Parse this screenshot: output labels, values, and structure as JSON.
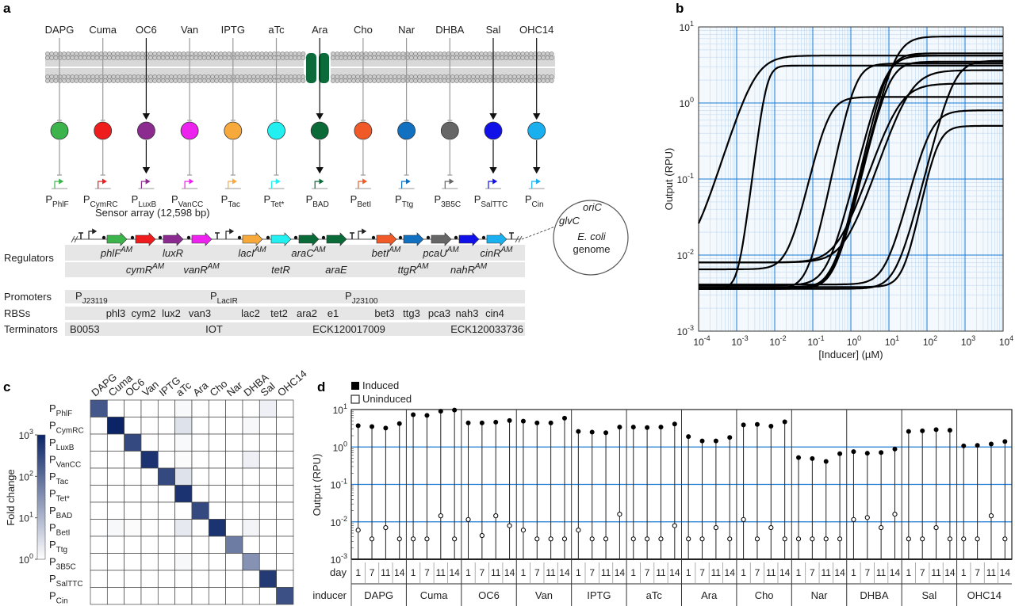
{
  "panel_labels": [
    "a",
    "b",
    "c",
    "d"
  ],
  "panel_a": {
    "inducers": [
      "DAPG",
      "Cuma",
      "OC6",
      "Van",
      "IPTG",
      "aTc",
      "Ara",
      "Cho",
      "Nar",
      "DHBA",
      "Sal",
      "OHC14"
    ],
    "mode": [
      "repress",
      "repress",
      "activate",
      "repress",
      "repress",
      "repress",
      "activate",
      "repress",
      "repress",
      "repress",
      "activate",
      "activate"
    ],
    "regulator_colors": [
      "#3cb44b",
      "#ee1c1c",
      "#8b2a8f",
      "#ee22ee",
      "#f7a93b",
      "#22f0f0",
      "#0a6a38",
      "#f05a28",
      "#1170c0",
      "#666666",
      "#1010e8",
      "#1ab0f0"
    ],
    "channel_color": "#0b6b3a",
    "promoters": [
      "PhlF",
      "CymRC",
      "LuxB",
      "VanCC",
      "Tac",
      "Tet*",
      "BAD",
      "BetI",
      "Ttg",
      "3B5C",
      "SalTTC",
      "Cin"
    ],
    "promoter_prefix": "P",
    "sensor_array_title": "Sensor array (12,598 bp)",
    "genes": [
      {
        "name": "phlF",
        "sup": "AM",
        "color": "#3cb44b",
        "row": 0
      },
      {
        "name": "cymR",
        "sup": "AM",
        "color": "#ee1c1c",
        "row": 1
      },
      {
        "name": "luxR",
        "sup": "",
        "color": "#8b2a8f",
        "row": 0
      },
      {
        "name": "vanR",
        "sup": "AM",
        "color": "#ee22ee",
        "row": 1
      },
      {
        "name": "lacI",
        "sup": "AM",
        "color": "#f7a93b",
        "row": 0
      },
      {
        "name": "tetR",
        "sup": "",
        "color": "#22f0f0",
        "row": 1
      },
      {
        "name": "araC",
        "sup": "AM",
        "color": "#0a6a38",
        "row": 0
      },
      {
        "name": "araE",
        "sup": "",
        "color": "#0a6a38",
        "row": 1
      },
      {
        "name": "betI",
        "sup": "AM",
        "color": "#f05a28",
        "row": 0
      },
      {
        "name": "ttgR",
        "sup": "AM",
        "color": "#1170c0",
        "row": 1
      },
      {
        "name": "pcaU",
        "sup": "AM",
        "color": "#666666",
        "row": 0
      },
      {
        "name": "nahR",
        "sup": "AM",
        "color": "#1010e8",
        "row": 1
      },
      {
        "name": "cinR",
        "sup": "AM",
        "color": "#1ab0f0",
        "row": 0
      }
    ],
    "row_labels": {
      "regulators": "Regulators",
      "promoters": "Promoters",
      "rbss": "RBSs",
      "terminators": "Terminators"
    },
    "array_promoters": [
      {
        "p": "P",
        "sub": "J23119"
      },
      {
        "p": "P",
        "sub": "LacIR"
      },
      {
        "p": "P",
        "sub": "J23100"
      }
    ],
    "rbss": [
      "phl3",
      "cym2",
      "lux2",
      "van3",
      "lac2",
      "tet2",
      "ara2",
      "e1",
      "bet3",
      "ttg3",
      "pca3",
      "nah3",
      "cin4"
    ],
    "terminators": [
      "B0053",
      "IOT",
      "ECK120017009",
      "ECK120033736"
    ],
    "genome": {
      "oric": "oriC",
      "glvc": "glvC",
      "species": "E. coli",
      "word": "genome"
    }
  },
  "chart_data": [
    {
      "type": "line",
      "panel": "b",
      "xlabel": "[Inducer] (µM)",
      "ylabel": "Output (RPU)",
      "xscale": "log",
      "yscale": "log",
      "xlim": [
        0.0001,
        10000
      ],
      "ylim": [
        0.001,
        10
      ],
      "x_tick_exponents": [
        "-4",
        "-3",
        "-2",
        "-1",
        "0",
        "1",
        "2",
        "3",
        "4"
      ],
      "y_tick_exponents": [
        "-3",
        "-2",
        "-1",
        "0",
        "1"
      ],
      "grid": true,
      "line_color": "#000000",
      "grid_color": "#1a7ad4",
      "curves_hill": [
        {
          "ymin": 0.008,
          "ymax": 4.2,
          "K": 0.003,
          "n": 1.6
        },
        {
          "ymin": 0.0036,
          "ymax": 3.1,
          "K": 0.006,
          "n": 4
        },
        {
          "ymin": 0.0065,
          "ymax": 1.2,
          "K": 0.25,
          "n": 2.2
        },
        {
          "ymin": 0.0036,
          "ymax": 3.3,
          "K": 1.3,
          "n": 2.4
        },
        {
          "ymin": 0.0036,
          "ymax": 7.5,
          "K": 15,
          "n": 2
        },
        {
          "ymin": 0.0038,
          "ymax": 4.5,
          "K": 9,
          "n": 2.2
        },
        {
          "ymin": 0.004,
          "ymax": 4.2,
          "K": 8,
          "n": 2
        },
        {
          "ymin": 0.0036,
          "ymax": 3.5,
          "K": 10,
          "n": 2.1
        },
        {
          "ymin": 0.008,
          "ymax": 2.7,
          "K": 35,
          "n": 1.5
        },
        {
          "ymin": 0.008,
          "ymax": 1.8,
          "K": 18,
          "n": 1.5
        },
        {
          "ymin": 0.0041,
          "ymax": 0.8,
          "K": 120,
          "n": 2
        },
        {
          "ymin": 0.0038,
          "ymax": 0.5,
          "K": 180,
          "n": 2.5
        },
        {
          "ymin": 0.0036,
          "ymax": 3.6,
          "K": 500,
          "n": 2
        }
      ]
    },
    {
      "type": "heatmap",
      "panel": "c",
      "columns": [
        "DAPG",
        "Cuma",
        "OC6",
        "Van",
        "IPTG",
        "aTc",
        "Ara",
        "Cho",
        "Nar",
        "DHBA",
        "Sal",
        "OHC14"
      ],
      "rows": [
        "PhlF",
        "CymRC",
        "LuxB",
        "VanCC",
        "Tac",
        "Tet*",
        "BAD",
        "BetI",
        "Ttg",
        "3B5C",
        "SalTTC",
        "Cin"
      ],
      "row_prefix": "P",
      "colorbar_label": "Fold change",
      "colorbar_tick_exponents": [
        "0",
        "1",
        "2",
        "3"
      ],
      "color_range": [
        1,
        1000
      ],
      "color_low": "#ffffff",
      "color_high": "#0b2466",
      "log10_fold_change": [
        [
          2.3,
          0,
          0,
          0,
          0,
          0.08,
          0,
          0,
          0,
          0,
          0.2,
          0
        ],
        [
          0,
          3.0,
          0,
          0,
          0,
          0.4,
          0,
          0,
          0,
          0.1,
          0,
          0
        ],
        [
          0,
          0,
          2.5,
          0,
          0,
          0.08,
          0,
          0,
          0,
          0,
          0,
          0
        ],
        [
          0,
          0,
          0,
          2.8,
          0,
          0.05,
          0,
          0,
          0,
          0.2,
          0,
          0
        ],
        [
          0,
          0,
          0,
          0,
          2.5,
          0.4,
          0,
          0,
          0,
          0,
          0,
          0
        ],
        [
          0,
          0,
          0,
          0,
          0,
          2.8,
          0,
          0,
          0,
          0,
          0,
          0
        ],
        [
          0,
          0,
          0,
          0,
          0,
          0,
          2.5,
          0,
          0,
          0,
          0,
          0
        ],
        [
          0,
          0.1,
          0.05,
          0,
          0,
          0.3,
          0,
          2.8,
          0,
          0.15,
          0,
          0
        ],
        [
          0,
          0,
          0,
          0,
          0,
          0,
          0,
          0,
          1.8,
          0,
          0,
          0
        ],
        [
          0,
          0,
          0,
          0,
          0,
          0.1,
          0,
          0,
          0,
          1.5,
          0,
          0
        ],
        [
          0,
          0,
          0,
          0,
          0,
          0,
          0,
          0,
          0,
          0,
          2.7,
          0
        ],
        [
          0,
          0,
          0,
          0,
          0,
          0,
          0,
          0,
          0,
          0,
          0,
          2.4
        ]
      ]
    },
    {
      "type": "scatter",
      "panel": "d",
      "ylabel": "Output (RPU)",
      "yscale": "log",
      "ylim": [
        0.001,
        10
      ],
      "y_tick_exponents": [
        "-3",
        "-2",
        "-1",
        "0",
        "1"
      ],
      "legend": {
        "induced": "Induced",
        "uninduced": "Uninduced",
        "placement": "top-left"
      },
      "day_label": "day",
      "inducer_label": "inducer",
      "days": [
        "1",
        "7",
        "11",
        "14"
      ],
      "groups": [
        "DAPG",
        "Cuma",
        "OC6",
        "Van",
        "IPTG",
        "aTc",
        "Ara",
        "Cho",
        "Nar",
        "DHBA",
        "Sal",
        "OHC14"
      ],
      "induced": [
        [
          3.7,
          3.5,
          3.2,
          4.2
        ],
        [
          7.3,
          7.0,
          9.0,
          9.7
        ],
        [
          4.4,
          4.4,
          4.6,
          5.1
        ],
        [
          4.9,
          4.4,
          4.4,
          5.9
        ],
        [
          2.6,
          2.5,
          2.4,
          3.4
        ],
        [
          3.4,
          3.3,
          3.4,
          4.1
        ],
        [
          1.9,
          1.45,
          1.45,
          1.8
        ],
        [
          3.9,
          4.0,
          3.6,
          4.7
        ],
        [
          0.52,
          0.49,
          0.41,
          0.66
        ],
        [
          0.75,
          0.68,
          0.71,
          0.88
        ],
        [
          2.6,
          2.7,
          2.9,
          2.8
        ],
        [
          1.07,
          1.1,
          1.2,
          1.4
        ]
      ],
      "uninduced": [
        [
          0.006,
          0.0035,
          0.007,
          0.0035
        ],
        [
          0.0035,
          0.0035,
          0.0145,
          0.0035
        ],
        [
          0.0115,
          0.0043,
          0.0145,
          0.0079
        ],
        [
          0.006,
          0.0035,
          0.0035,
          0.0035
        ],
        [
          0.006,
          0.0035,
          0.0035,
          0.016
        ],
        [
          0.0035,
          0.0035,
          0.0035,
          0.0079
        ],
        [
          0.0035,
          0.0035,
          0.007,
          0.0035
        ],
        [
          0.0115,
          0.0035,
          0.007,
          0.0035
        ],
        [
          0.0035,
          0.0035,
          0.0035,
          0.0035
        ],
        [
          0.0115,
          0.013,
          0.007,
          0.016
        ],
        [
          0.0035,
          0.0035,
          0.007,
          0.0035
        ],
        [
          0.0035,
          0.0035,
          0.0145,
          0.0035
        ]
      ],
      "gridline_color": "#1a7ad4"
    }
  ]
}
